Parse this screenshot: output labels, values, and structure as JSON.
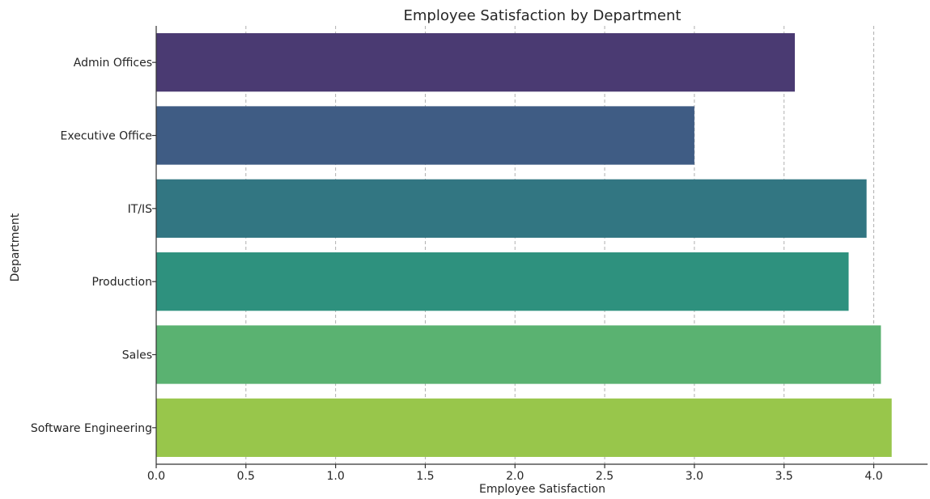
{
  "chart_data": {
    "type": "bar",
    "orientation": "horizontal",
    "title": "Employee Satisfaction by Department",
    "xlabel": "Employee Satisfaction",
    "ylabel": "Department",
    "xlim": [
      0,
      4.3
    ],
    "x_ticks": [
      "0.0",
      "0.5",
      "1.0",
      "1.5",
      "2.0",
      "2.5",
      "3.0",
      "3.5",
      "4.0"
    ],
    "grid": "vertical dashed",
    "categories": [
      "Admin Offices",
      "Executive Office",
      "IT/IS",
      "Production",
      "Sales",
      "Software Engineering"
    ],
    "values": [
      3.56,
      3.0,
      3.96,
      3.86,
      4.04,
      4.1
    ],
    "colors": [
      "#4a3a72",
      "#3f5c84",
      "#327682",
      "#2e917e",
      "#5ab271",
      "#98c64b"
    ]
  }
}
